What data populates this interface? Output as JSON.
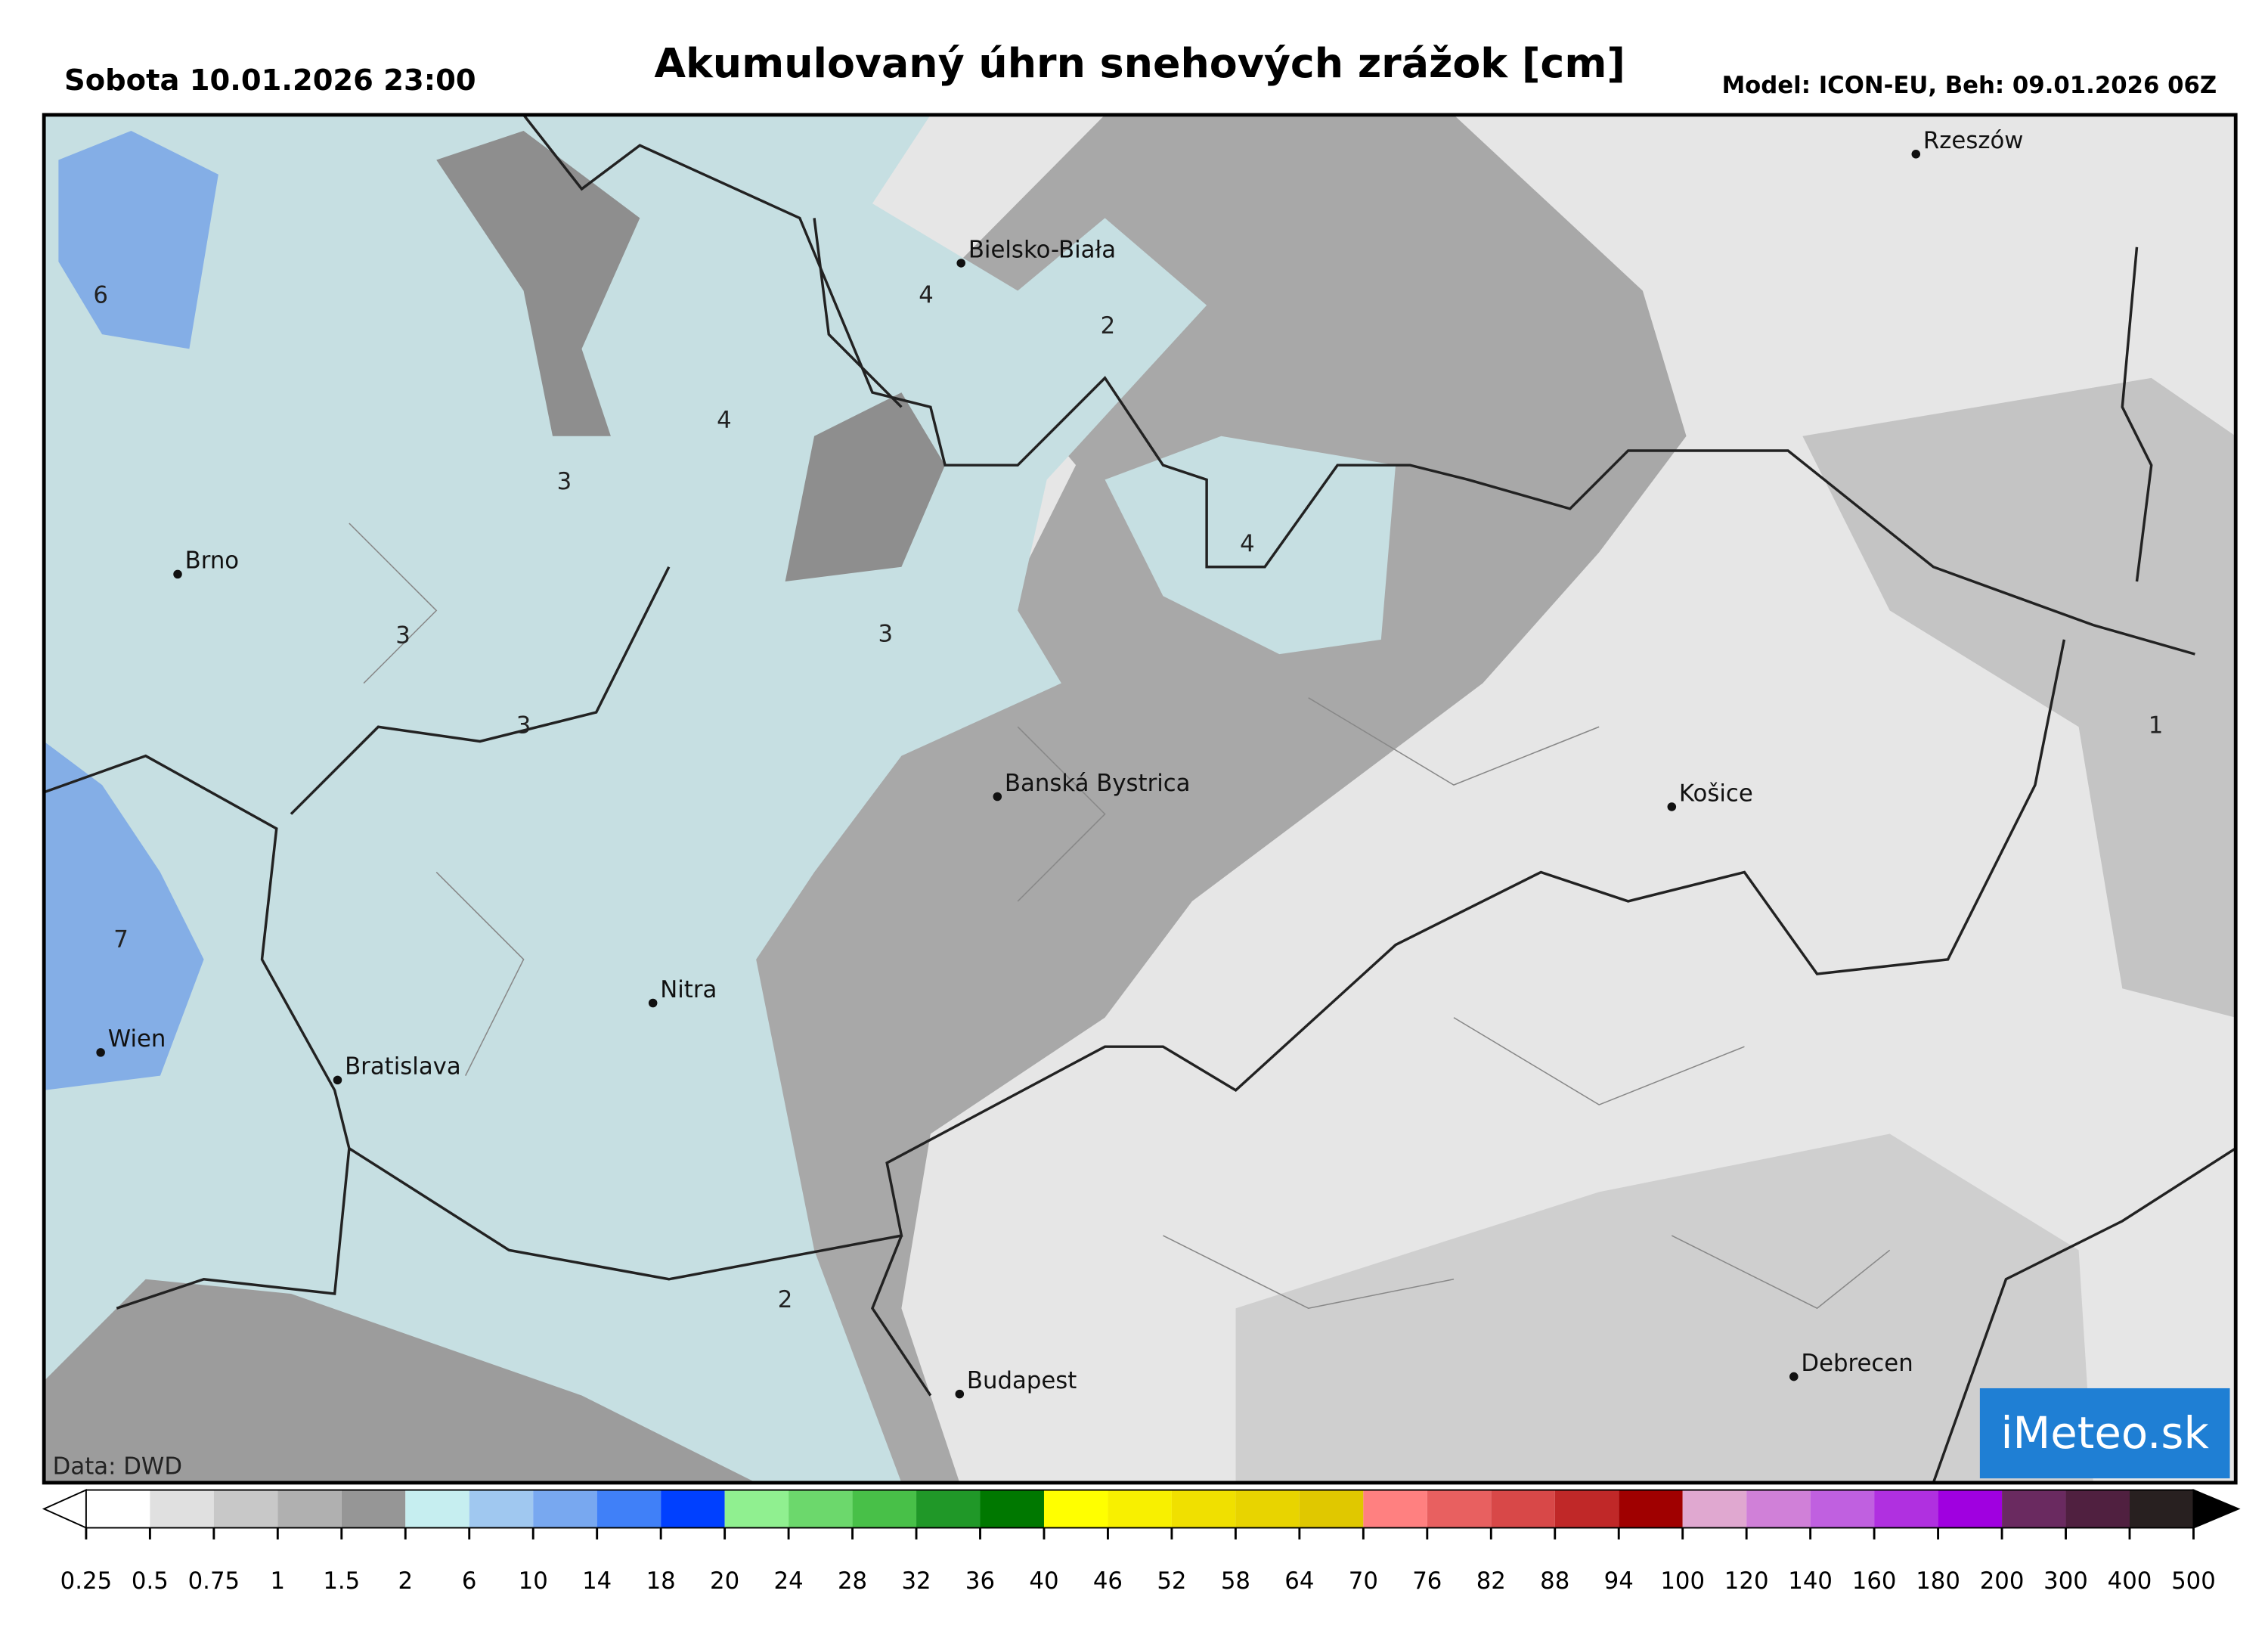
{
  "header": {
    "date": "Sobota 10.01.2026 23:00",
    "title": "Akumulovaný úhrn snehových zrážok [cm]",
    "model": "Model: ICON-EU, Beh: 09.01.2026 06Z"
  },
  "cities": [
    {
      "name": "Rzeszów"
    },
    {
      "name": "Bielsko-Biała"
    },
    {
      "name": "Brno"
    },
    {
      "name": "Banská Bystrica"
    },
    {
      "name": "Košice"
    },
    {
      "name": "Nitra"
    },
    {
      "name": "Wien"
    },
    {
      "name": "Bratislava"
    },
    {
      "name": "Budapest"
    },
    {
      "name": "Debrecen"
    }
  ],
  "contour_labels": [
    6,
    4,
    2,
    4,
    3,
    4,
    3,
    3,
    3,
    1,
    7,
    2
  ],
  "source": "Data: DWD",
  "logo": "iMeteo.sk",
  "colorbar": {
    "ticks": [
      0.25,
      0.5,
      0.75,
      1,
      1.5,
      2,
      6,
      10,
      14,
      18,
      20,
      24,
      28,
      32,
      36,
      40,
      46,
      52,
      58,
      64,
      70,
      76,
      82,
      88,
      94,
      100,
      120,
      140,
      160,
      180,
      200,
      300,
      400,
      500
    ],
    "colors": [
      "#ffffff",
      "#e0e0e0",
      "#c8c8c8",
      "#b0b0b0",
      "#969696",
      "#c6eef0",
      "#a0c8f0",
      "#78a8f0",
      "#4080f8",
      "#0040ff",
      "#90f090",
      "#6cd86c",
      "#48c048",
      "#209828",
      "#007800",
      "#ffff00",
      "#f8f000",
      "#f0e000",
      "#e8d400",
      "#e0c800",
      "#ff8080",
      "#e86060",
      "#d84848",
      "#c02828",
      "#a00000",
      "#e0a8d0",
      "#d080d8",
      "#c060e0",
      "#b030e0",
      "#a000e0",
      "#6a2a60",
      "#502040",
      "#282020"
    ],
    "under_color": "#ffffff",
    "over_color": "#000000"
  }
}
